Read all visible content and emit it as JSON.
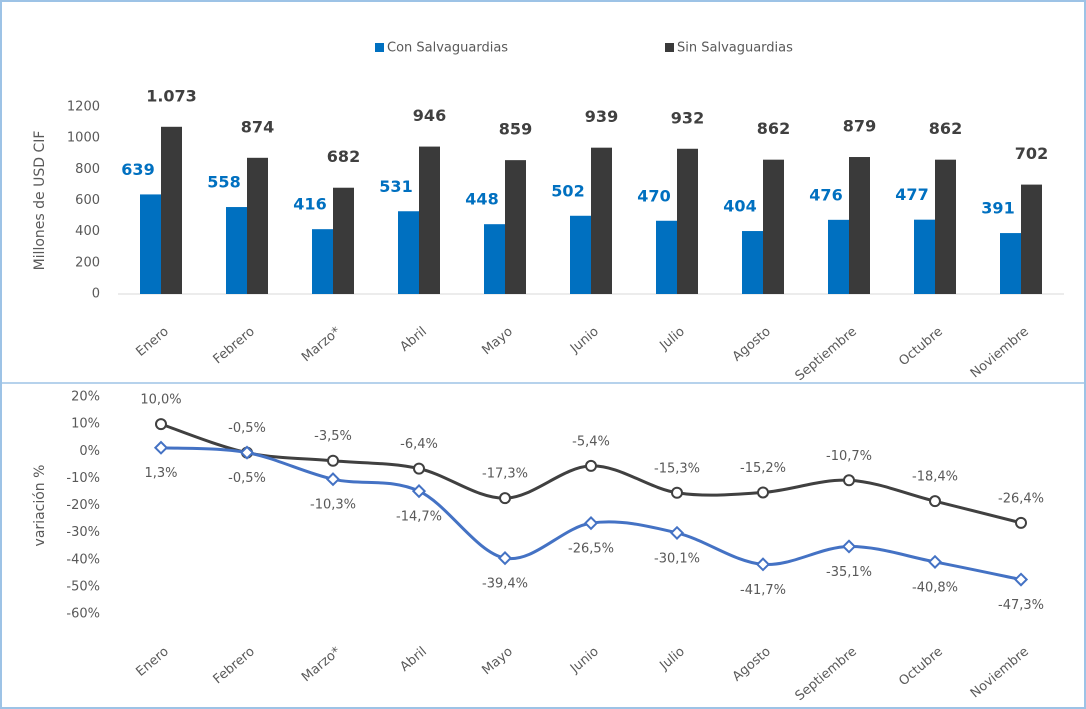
{
  "chart_data": [
    {
      "type": "bar",
      "categories": [
        "Enero",
        "Febrero",
        "Marzo*",
        "Abril",
        "Mayo",
        "Junio",
        "Julio",
        "Agosto",
        "Septiembre",
        "Octubre",
        "Noviembre"
      ],
      "ylabel": "Millones de USD CIF",
      "ylim": [
        0,
        1200
      ],
      "yticks": [
        0,
        200,
        400,
        600,
        800,
        1000,
        1200
      ],
      "grid": false,
      "legend": "top",
      "series": [
        {
          "name": "Con Salvaguardias",
          "color": "#0070c0",
          "values": [
            639,
            558,
            416,
            531,
            448,
            502,
            470,
            404,
            476,
            477,
            391
          ]
        },
        {
          "name": "Sin Salvaguardias",
          "color": "#3a3a3a",
          "values": [
            1073,
            874,
            682,
            946,
            859,
            939,
            932,
            862,
            879,
            862,
            702
          ],
          "value_labels": [
            "1.073",
            "874",
            "682",
            "946",
            "859",
            "939",
            "932",
            "862",
            "879",
            "862",
            "702"
          ]
        }
      ]
    },
    {
      "type": "line",
      "categories": [
        "Enero",
        "Febrero",
        "Marzo*",
        "Abril",
        "Mayo",
        "Junio",
        "Julio",
        "Agosto",
        "Septiembre",
        "Octubre",
        "Noviembre"
      ],
      "ylabel": "variación %",
      "ylim": [
        -60,
        20
      ],
      "yticks": [
        {
          "value": 20,
          "label": "20%"
        },
        {
          "value": 10,
          "label": "10%"
        },
        {
          "value": 0,
          "label": "0%"
        },
        {
          "value": -10,
          "label": "-10%"
        },
        {
          "value": -20,
          "label": "-20%"
        },
        {
          "value": -30,
          "label": "-30%"
        },
        {
          "value": -40,
          "label": "-40%"
        },
        {
          "value": -50,
          "label": "-50%"
        },
        {
          "value": -60,
          "label": "-60%"
        }
      ],
      "grid": false,
      "series": [
        {
          "color": "#404040",
          "values": [
            10.0,
            -0.5,
            -3.5,
            -6.4,
            -17.3,
            -5.4,
            -15.3,
            -15.2,
            -10.7,
            -18.4,
            -26.4
          ],
          "value_labels": [
            "10,0%",
            "-0,5%",
            "-3,5%",
            "-6,4%",
            "-17,3%",
            "-5,4%",
            "-15,3%",
            "-15,2%",
            "-10,7%",
            "-18,4%",
            "-26,4%"
          ]
        },
        {
          "color": "#4472c4",
          "values": [
            1.3,
            -0.5,
            -10.3,
            -14.7,
            -39.4,
            -26.5,
            -30.1,
            -41.7,
            -35.1,
            -40.8,
            -47.3
          ],
          "value_labels": [
            "1,3%",
            "-0,5%",
            "-10,3%",
            "-14,7%",
            "-39,4%",
            "-26,5%",
            "-30,1%",
            "-41,7%",
            "-35,1%",
            "-40,8%",
            "-47,3%"
          ]
        }
      ]
    }
  ]
}
